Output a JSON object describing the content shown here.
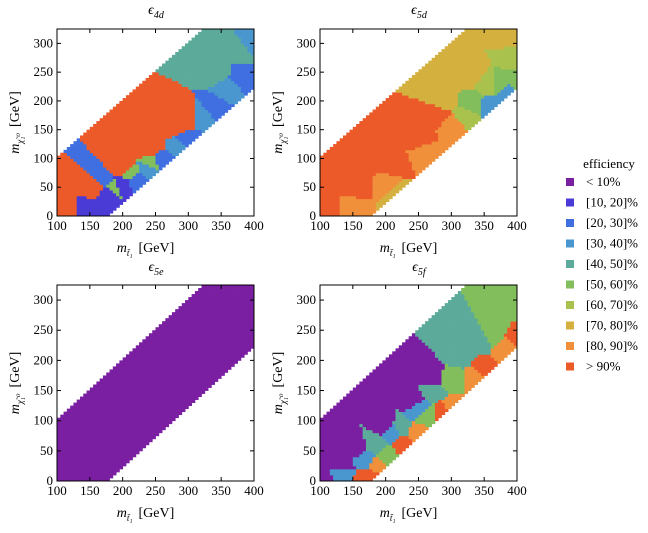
{
  "chart_data": {
    "type": "heatmap",
    "x_step": 5,
    "legend": {
      "title": "efficiency",
      "placement": "right",
      "bins": [
        {
          "label": "< 10%",
          "color": "#7b1fa2"
        },
        {
          "label": "[10, 20]%",
          "color": "#4a3ad6"
        },
        {
          "label": "[20, 30]%",
          "color": "#3f6fe0"
        },
        {
          "label": "[30, 40]%",
          "color": "#4a97cf"
        },
        {
          "label": "[40, 50]%",
          "color": "#5cab9a"
        },
        {
          "label": "[50, 60]%",
          "color": "#82be5c"
        },
        {
          "label": "[60, 70]%",
          "color": "#a9c24d"
        },
        {
          "label": "[70, 80]%",
          "color": "#d4b13f"
        },
        {
          "label": "[80, 90]%",
          "color": "#f0903a"
        },
        {
          "label": "> 90%",
          "color": "#ec5a2a"
        }
      ]
    },
    "panels": [
      {
        "title_main": "ϵ",
        "title_sub": "4d",
        "xlabel_text": "[GeV]",
        "ylabel_text": "[GeV]",
        "xlim": [
          100,
          400
        ],
        "ylim": [
          0,
          325
        ],
        "xticks": [
          100,
          150,
          200,
          250,
          300,
          350,
          400
        ],
        "yticks": [
          0,
          50,
          100,
          150,
          200,
          250,
          300
        ],
        "diagonal_offsets": [
          0,
          175
        ],
        "regions": [
          {
            "name": "high-efficiency core",
            "bin": 9,
            "centers": [
              [
                110,
                8
              ],
              [
                160,
                50
              ],
              [
                200,
                85
              ],
              [
                240,
                120
              ],
              [
                280,
                160
              ],
              [
                300,
                175
              ]
            ]
          },
          {
            "name": "low-mass purple edge",
            "bin": 1,
            "centers": [
              [
                150,
                10
              ],
              [
                165,
                5
              ],
              [
                175,
                40
              ],
              [
                200,
                55
              ]
            ]
          },
          {
            "name": "blue corridor",
            "bin": 2,
            "centers": [
              [
                170,
                60
              ],
              [
                220,
                60
              ],
              [
                260,
                95
              ],
              [
                300,
                130
              ],
              [
                340,
                190
              ],
              [
                385,
                240
              ]
            ]
          },
          {
            "name": "cyan band",
            "bin": 3,
            "centers": [
              [
                240,
                80
              ],
              [
                290,
                120
              ],
              [
                320,
                175
              ],
              [
                360,
                220
              ],
              [
                395,
                300
              ]
            ]
          },
          {
            "name": "green patches",
            "bin": 5,
            "centers": [
              [
                185,
                50
              ],
              [
                210,
                75
              ],
              [
                245,
                90
              ]
            ]
          },
          {
            "name": "teal strip",
            "bin": 4,
            "centers": [
              [
                340,
                250
              ],
              [
                380,
                290
              ]
            ]
          }
        ]
      },
      {
        "title_main": "ϵ",
        "title_sub": "5d",
        "xlabel_text": "[GeV]",
        "ylabel_text": "[GeV]",
        "xlim": [
          100,
          400
        ],
        "ylim": [
          0,
          325
        ],
        "xticks": [
          100,
          150,
          200,
          250,
          300,
          350,
          400
        ],
        "yticks": [
          0,
          50,
          100,
          150,
          200,
          250,
          300
        ],
        "diagonal_offsets": [
          0,
          175
        ],
        "regions": [
          {
            "name": "high-efficiency core",
            "bin": 9,
            "centers": [
              [
                110,
                8
              ],
              [
                160,
                55
              ],
              [
                210,
                95
              ],
              [
                250,
                135
              ],
              [
                280,
                175
              ]
            ]
          },
          {
            "name": "orange fringe",
            "bin": 8,
            "centers": [
              [
                150,
                10
              ],
              [
                200,
                50
              ],
              [
                260,
                110
              ],
              [
                300,
                160
              ]
            ]
          },
          {
            "name": "yellow band",
            "bin": 7,
            "centers": [
              [
                210,
                40
              ],
              [
                290,
                200
              ],
              [
                330,
                250
              ],
              [
                390,
                310
              ]
            ]
          },
          {
            "name": "olive band",
            "bin": 6,
            "centers": [
              [
                320,
                175
              ],
              [
                360,
                230
              ],
              [
                395,
                280
              ]
            ]
          },
          {
            "name": "green band",
            "bin": 5,
            "centers": [
              [
                330,
                195
              ],
              [
                370,
                230
              ],
              [
                400,
                235
              ]
            ]
          },
          {
            "name": "cyan lower edge",
            "bin": 3,
            "centers": [
              [
                385,
                215
              ],
              [
                360,
                190
              ]
            ]
          }
        ]
      },
      {
        "title_main": "ϵ",
        "title_sub": "5e",
        "xlabel_text": "[GeV]",
        "ylabel_text": "[GeV]",
        "xlim": [
          100,
          400
        ],
        "ylim": [
          0,
          325
        ],
        "xticks": [
          100,
          150,
          200,
          250,
          300,
          350,
          400
        ],
        "yticks": [
          0,
          50,
          100,
          150,
          200,
          250,
          300
        ],
        "diagonal_offsets": [
          0,
          175
        ],
        "regions": [
          {
            "name": "uniform region",
            "bin": 0,
            "centers": [
              [
                250,
                150
              ]
            ]
          }
        ]
      },
      {
        "title_main": "ϵ",
        "title_sub": "5f",
        "xlabel_text": "[GeV]",
        "ylabel_text": "[GeV]",
        "xlim": [
          100,
          400
        ],
        "ylim": [
          0,
          325
        ],
        "xticks": [
          100,
          150,
          200,
          250,
          300,
          350,
          400
        ],
        "yticks": [
          0,
          50,
          100,
          150,
          200,
          250,
          300
        ],
        "diagonal_offsets": [
          0,
          175
        ],
        "regions": [
          {
            "name": "purple upper edge",
            "bin": 0,
            "centers": [
              [
                105,
                5
              ],
              [
                130,
                25
              ],
              [
                160,
                55
              ],
              [
                200,
                95
              ],
              [
                240,
                135
              ],
              [
                270,
                175
              ]
            ]
          },
          {
            "name": "cyan strip",
            "bin": 3,
            "centers": [
              [
                130,
                15
              ],
              [
                170,
                40
              ],
              [
                210,
                85
              ],
              [
                250,
                120
              ]
            ]
          },
          {
            "name": "teal body",
            "bin": 4,
            "centers": [
              [
                180,
                60
              ],
              [
                220,
                90
              ],
              [
                270,
                150
              ],
              [
                310,
                210
              ],
              [
                340,
                240
              ]
            ]
          },
          {
            "name": "green body",
            "bin": 5,
            "centers": [
              [
                200,
                40
              ],
              [
                260,
                110
              ],
              [
                300,
                170
              ],
              [
                360,
                250
              ],
              [
                395,
                300
              ]
            ]
          },
          {
            "name": "orange strip",
            "bin": 8,
            "centers": [
              [
                190,
                30
              ],
              [
                250,
                80
              ],
              [
                300,
                120
              ],
              [
                340,
                170
              ],
              [
                390,
                220
              ]
            ]
          },
          {
            "name": "red lower edge",
            "bin": 9,
            "centers": [
              [
                175,
                5
              ],
              [
                230,
                60
              ],
              [
                290,
                115
              ],
              [
                350,
                180
              ],
              [
                400,
                230
              ]
            ]
          }
        ]
      }
    ]
  }
}
